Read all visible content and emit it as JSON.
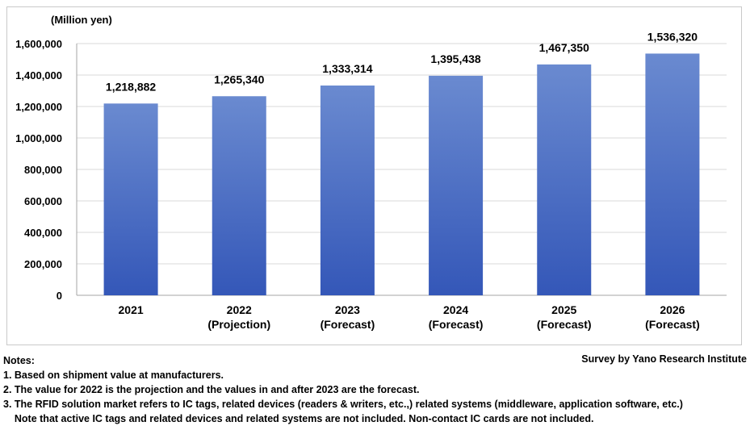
{
  "chart_data": {
    "type": "bar",
    "unit_label": "(Million yen)",
    "categories": [
      [
        "2021"
      ],
      [
        "2022",
        "(Projection)"
      ],
      [
        "2023",
        "(Forecast)"
      ],
      [
        "2024",
        "(Forecast)"
      ],
      [
        "2025",
        "(Forecast)"
      ],
      [
        "2026",
        "(Forecast)"
      ]
    ],
    "values": [
      1218882,
      1265340,
      1333314,
      1395438,
      1467350,
      1536320
    ],
    "value_labels": [
      "1,218,882",
      "1,265,340",
      "1,333,314",
      "1,395,438",
      "1,467,350",
      "1,536,320"
    ],
    "ylim": [
      0,
      1600000
    ],
    "yticks": [
      0,
      200000,
      400000,
      600000,
      800000,
      1000000,
      1200000,
      1400000,
      1600000
    ],
    "ytick_labels": [
      "0",
      "200,000",
      "400,000",
      "600,000",
      "800,000",
      "1,000,000",
      "1,200,000",
      "1,400,000",
      "1,600,000"
    ],
    "grid": true,
    "bar_color_top": "#6a8ad0",
    "bar_color_bottom": "#3457b8"
  },
  "notes": {
    "title": "Notes:",
    "items": [
      "1. Based on shipment value at manufacturers.",
      "2. The value for 2022 is the projection and the values in and after 2023 are the forecast.",
      "3. The RFID solution market refers to IC tags, related devices (readers & writers, etc.,) related systems (middleware, application software, etc.)",
      "    Note that active IC tags and related devices and related systems are not included. Non-contact IC cards are not included."
    ]
  },
  "credit": "Survey by Yano Research Institute"
}
